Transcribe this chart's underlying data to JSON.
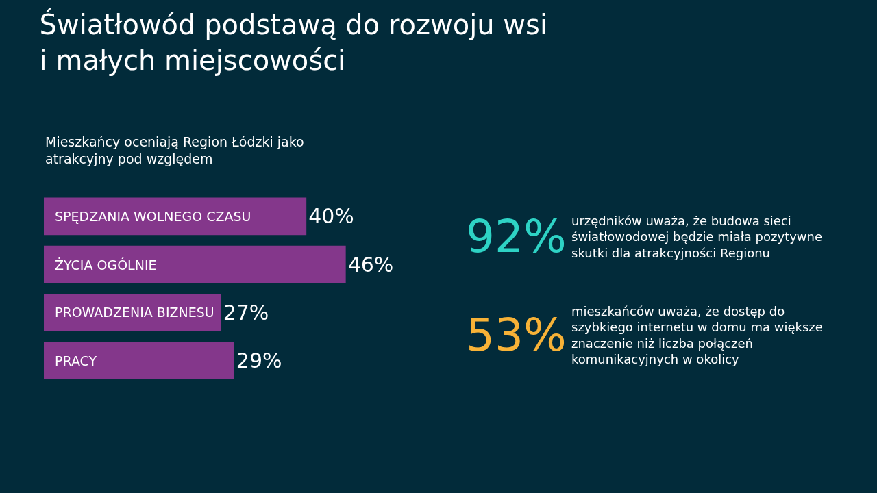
{
  "chart_data": [
    {
      "type": "bar",
      "orientation": "horizontal",
      "title": "Światłowód podstawą do rozwoju wsi i małych miejscowości",
      "subtitle": "Mieszkańcy oceniają Region Łódzki jako atrakcyjny pod względem",
      "categories": [
        "SPĘDZANIA WOLNEGO CZASU",
        "ŻYCIA OGÓLNIE",
        "PROWADZENIA BIZNESU",
        "PRACY"
      ],
      "values": [
        40,
        46,
        27,
        29
      ],
      "value_labels": [
        "40%",
        "46%",
        "27%",
        "29%"
      ],
      "color": "#84378b",
      "tick_labels": false
    },
    {
      "type": "other",
      "categories": [
        "urzędników uważa, że budowa sieci światłowodowej będzie miała pozytywne skutki dla atrakcyjności Regionu",
        "mieszkańców uważa, że dostęp do szybkiego internetu w domu ma większe znaczenie niż liczba połączeń komunikacyjnych w okolicy"
      ],
      "value_labels": [
        "92%",
        "53%"
      ],
      "colors": [
        "#2ed3c5",
        "#f7b237"
      ]
    }
  ]
}
